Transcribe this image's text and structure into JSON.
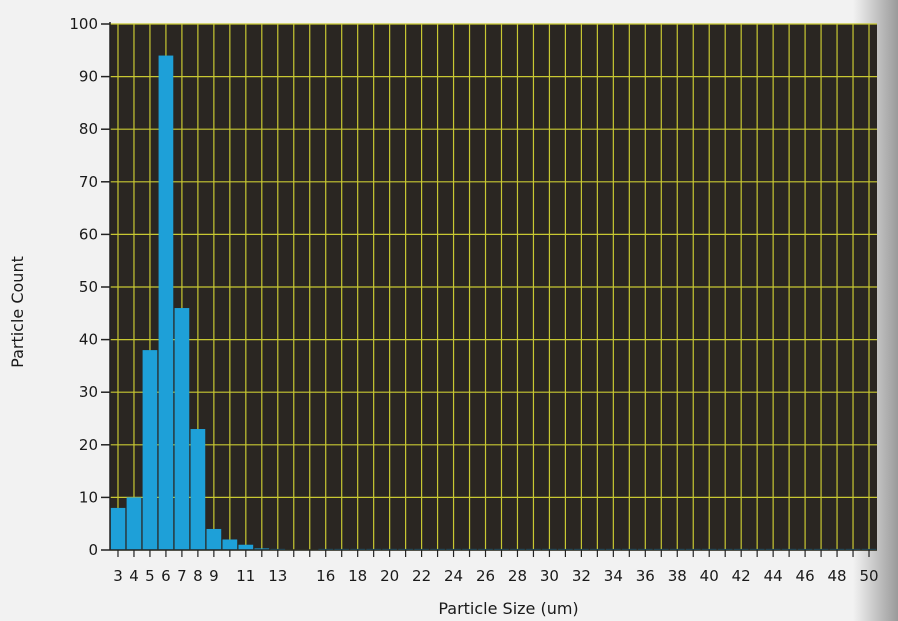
{
  "chart_data": {
    "type": "bar",
    "title": "",
    "xlabel": "Particle Size (um)",
    "ylabel": "Particle Count",
    "x": [
      3,
      4,
      5,
      6,
      7,
      8,
      9,
      10,
      11,
      12,
      13,
      14,
      15,
      16,
      17,
      18,
      19,
      20,
      21,
      22,
      23,
      24,
      25,
      26,
      27,
      28,
      29,
      30,
      31,
      32,
      33,
      34,
      35,
      36,
      37,
      38,
      39,
      40,
      41,
      42,
      43,
      44,
      45,
      46,
      47,
      48,
      49,
      50
    ],
    "values": [
      8,
      10,
      38,
      94,
      46,
      23,
      4,
      2,
      1,
      0.3,
      0.2,
      0.1,
      0.1,
      0.2,
      0.2,
      0.2,
      0.2,
      0.2,
      0.2,
      0.2,
      0.2,
      0.2,
      0.2,
      0.2,
      0.2,
      0.2,
      0.2,
      0.2,
      0.2,
      0.2,
      0.2,
      0.2,
      0.2,
      0.2,
      0.2,
      0.2,
      0.2,
      0.2,
      0.2,
      0.2,
      0.2,
      0.2,
      0.2,
      0.2,
      0.2,
      0.2,
      0.2,
      0.2
    ],
    "xlim": [
      3,
      50
    ],
    "ylim": [
      0,
      100
    ],
    "yticks": [
      0,
      10,
      20,
      30,
      40,
      50,
      60,
      70,
      80,
      90,
      100
    ],
    "xtick_labels": [
      "3",
      "4",
      "5",
      "6",
      "7",
      "8",
      "9",
      "11",
      "13",
      "16",
      "18",
      "20",
      "22",
      "24",
      "26",
      "28",
      "30",
      "32",
      "34",
      "36",
      "38",
      "40",
      "42",
      "44",
      "46",
      "48",
      "50"
    ],
    "xtick_positions": [
      3,
      4,
      5,
      6,
      7,
      8,
      9,
      11,
      13,
      16,
      18,
      20,
      22,
      24,
      26,
      28,
      30,
      32,
      34,
      36,
      38,
      40,
      42,
      44,
      46,
      48,
      50
    ],
    "grid": true,
    "colors": {
      "plot_background": "#2a2622",
      "grid": "#c8c832",
      "bar": "#1ea0d8",
      "axis": "#222222"
    }
  }
}
